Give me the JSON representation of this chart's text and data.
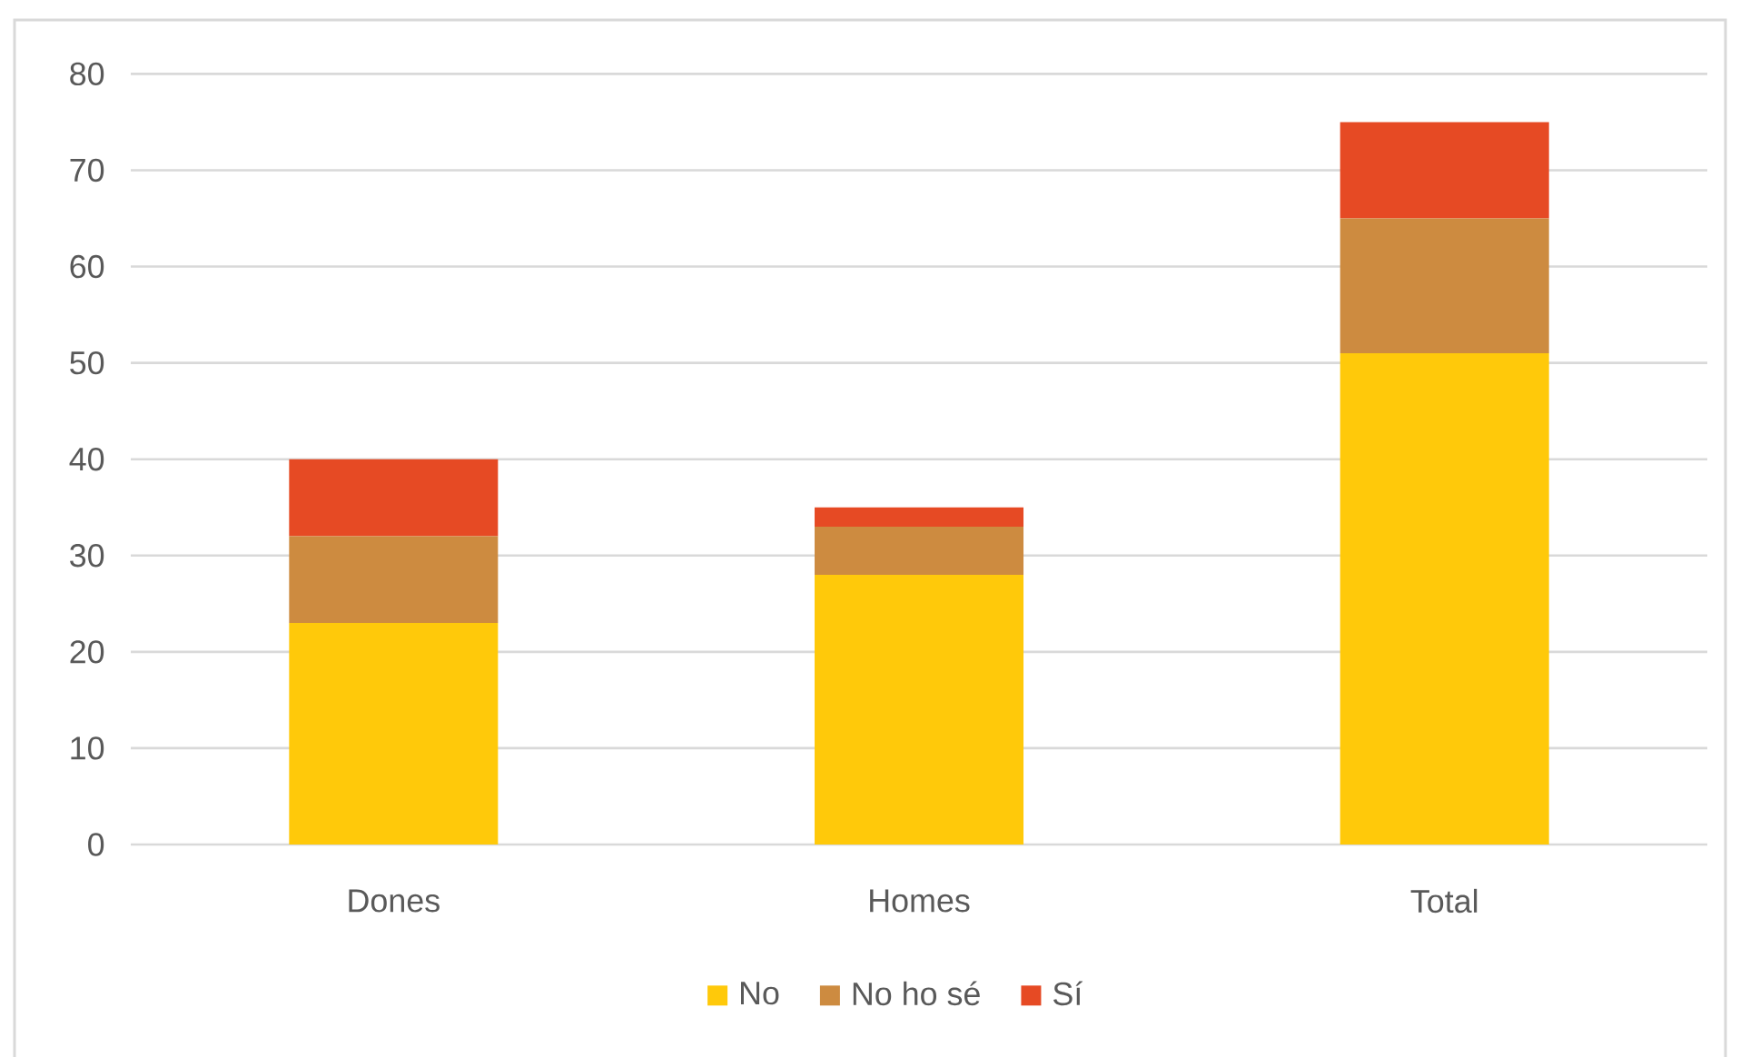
{
  "chart_data": {
    "type": "bar",
    "stacked": true,
    "categories": [
      "Dones",
      "Homes",
      "Total"
    ],
    "series": [
      {
        "name": "No",
        "color": "#ffc90a",
        "values": [
          23,
          28,
          51
        ]
      },
      {
        "name": "No ho sé",
        "color": "#cd8b40",
        "values": [
          9,
          5,
          14
        ]
      },
      {
        "name": "Sí",
        "color": "#e64a24",
        "values": [
          8,
          2,
          10
        ]
      }
    ],
    "ylim": [
      0,
      80
    ],
    "yticks": [
      0,
      10,
      20,
      30,
      40,
      50,
      60,
      70,
      80
    ],
    "grid": "y",
    "legend": "bottom"
  }
}
